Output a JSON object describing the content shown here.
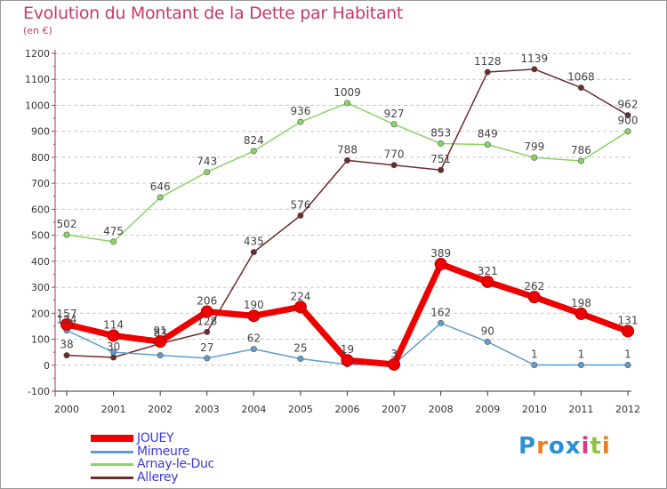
{
  "chart_data": {
    "type": "line",
    "title": "Evolution du Montant de la Dette par Habitant",
    "subtitle": "(en €)",
    "xlabel": "",
    "ylabel": "",
    "ylim": [
      -100,
      1200
    ],
    "y_ticks": [
      -100,
      0,
      100,
      200,
      300,
      400,
      500,
      600,
      700,
      800,
      900,
      1000,
      1100,
      1200
    ],
    "categories": [
      "2000",
      "2001",
      "2002",
      "2003",
      "2004",
      "2005",
      "2006",
      "2007",
      "2008",
      "2009",
      "2010",
      "2011",
      "2012"
    ],
    "grid": "horizontal dashed",
    "legend_position": "bottom-left",
    "series": [
      {
        "name": "JOUEY",
        "color": "#ee0000",
        "values": [
          157,
          114,
          91,
          206,
          190,
          224,
          19,
          3,
          389,
          321,
          262,
          198,
          131
        ],
        "labels": [
          "157",
          "114",
          "91",
          "206",
          "190",
          "224",
          "19",
          "3",
          "389",
          "321",
          "262",
          "198",
          "131"
        ]
      },
      {
        "name": "Mimeure",
        "color": "#5f9dce",
        "values": [
          134,
          50,
          38,
          27,
          62,
          25,
          3,
          3,
          162,
          90,
          1,
          1,
          1
        ],
        "labels": [
          "134",
          "",
          "",
          "27",
          "62",
          "25",
          "",
          "",
          "162",
          "90",
          "1",
          "1",
          "1"
        ]
      },
      {
        "name": "Arnay-le-Duc",
        "color": "#8ad466",
        "values": [
          502,
          475,
          646,
          743,
          824,
          936,
          1009,
          927,
          853,
          849,
          799,
          786,
          900
        ],
        "labels": [
          "502",
          "475",
          "646",
          "743",
          "824",
          "936",
          "1009",
          "927",
          "853",
          "849",
          "799",
          "786",
          "900"
        ]
      },
      {
        "name": "Allerey",
        "color": "#6e2a2a",
        "values": [
          38,
          30,
          83,
          128,
          435,
          576,
          788,
          770,
          751,
          1128,
          1139,
          1068,
          962
        ],
        "labels": [
          "38",
          "30",
          "83",
          "128",
          "435",
          "576",
          "788",
          "770",
          "751",
          "1128",
          "1139",
          "1068",
          "962"
        ]
      }
    ]
  },
  "brand": {
    "text": "Proxiti",
    "letters": [
      "P",
      "r",
      "o",
      "x",
      "i",
      "t",
      "i"
    ],
    "colors": [
      "#2b8fd6",
      "#ef7d1a",
      "#2b8fd6",
      "#2b8fd6",
      "#d63a8a",
      "#8bc53f",
      "#ef7d1a"
    ]
  }
}
